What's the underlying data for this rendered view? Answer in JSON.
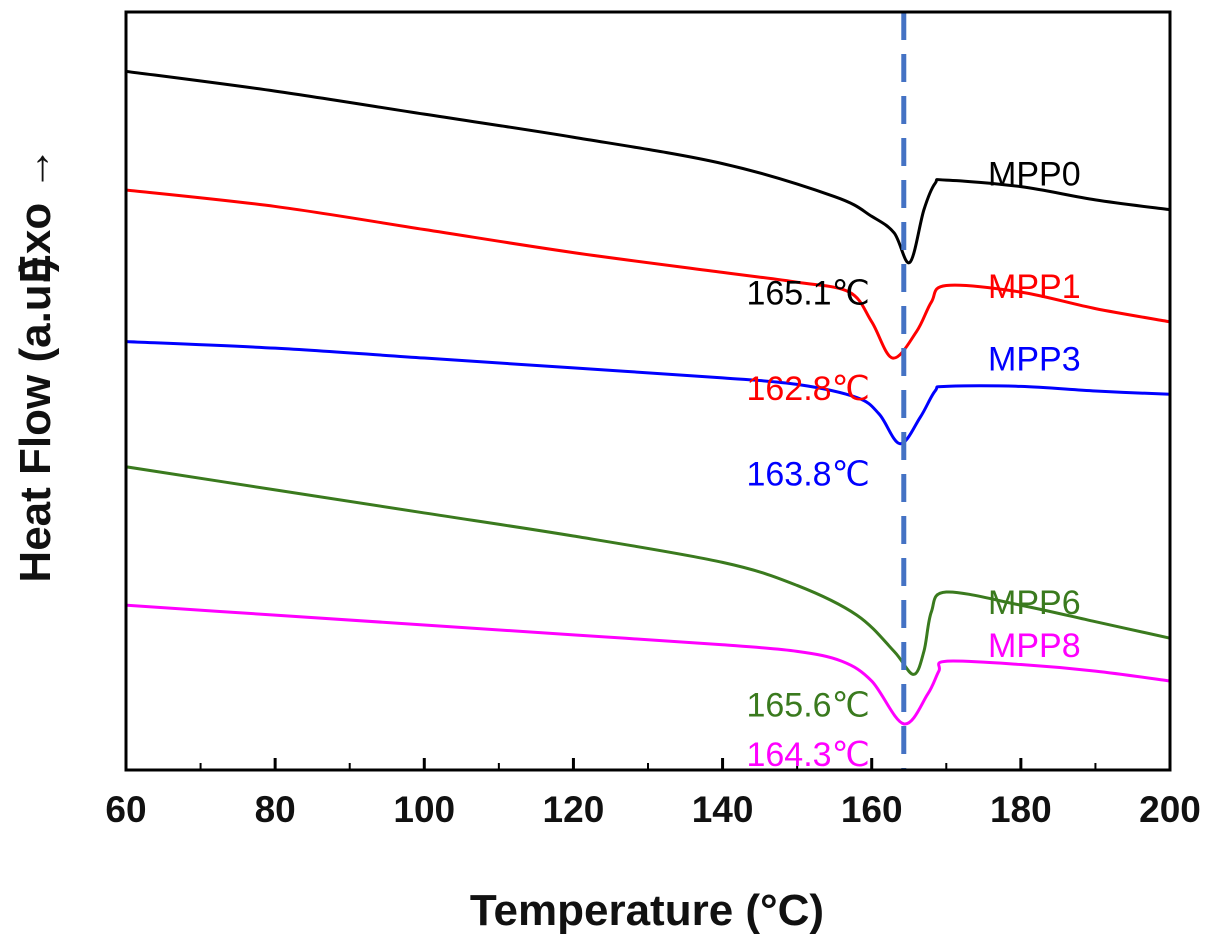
{
  "chart_data": {
    "type": "line",
    "xlabel": "Temperature (°C)",
    "ylabel": "Heat Flow (a.u.)",
    "ylabel_suffix": "Exo →",
    "xlim": [
      60,
      200
    ],
    "x_ticks": [
      "60",
      "80",
      "100",
      "120",
      "140",
      "160",
      "180",
      "200"
    ],
    "y_ticks_shown": false,
    "grid": false,
    "reference_line": {
      "x": 164.3,
      "style": "dashed",
      "color": "#4472c4"
    },
    "series": [
      {
        "name": "MPP0",
        "color": "#000000",
        "peak_label": "165.1℃",
        "points": [
          [
            60,
            10.0
          ],
          [
            80,
            9.7
          ],
          [
            100,
            9.35
          ],
          [
            120,
            9.0
          ],
          [
            140,
            8.6
          ],
          [
            155,
            8.1
          ],
          [
            160,
            7.8
          ],
          [
            163,
            7.55
          ],
          [
            165.1,
            7.1
          ],
          [
            167,
            7.9
          ],
          [
            168.5,
            8.3
          ],
          [
            170,
            8.35
          ],
          [
            180,
            8.25
          ],
          [
            190,
            8.05
          ],
          [
            200,
            7.9
          ]
        ]
      },
      {
        "name": "MPP1",
        "color": "#ff0000",
        "peak_label": "162.8℃",
        "points": [
          [
            60,
            8.2
          ],
          [
            80,
            7.95
          ],
          [
            100,
            7.6
          ],
          [
            120,
            7.25
          ],
          [
            140,
            6.95
          ],
          [
            150,
            6.8
          ],
          [
            157,
            6.65
          ],
          [
            160,
            6.2
          ],
          [
            162.8,
            5.65
          ],
          [
            166,
            6.05
          ],
          [
            168,
            6.5
          ],
          [
            170,
            6.75
          ],
          [
            180,
            6.65
          ],
          [
            190,
            6.4
          ],
          [
            200,
            6.2
          ]
        ]
      },
      {
        "name": "MPP3",
        "color": "#0000ff",
        "peak_label": "163.8℃",
        "points": [
          [
            60,
            5.9
          ],
          [
            80,
            5.8
          ],
          [
            100,
            5.65
          ],
          [
            120,
            5.5
          ],
          [
            140,
            5.35
          ],
          [
            150,
            5.25
          ],
          [
            158,
            5.05
          ],
          [
            161,
            4.8
          ],
          [
            163.8,
            4.35
          ],
          [
            166.5,
            4.75
          ],
          [
            168.5,
            5.15
          ],
          [
            170,
            5.22
          ],
          [
            180,
            5.22
          ],
          [
            190,
            5.15
          ],
          [
            200,
            5.1
          ]
        ]
      },
      {
        "name": "MPP6",
        "color": "#3a7a1e",
        "peak_label": "165.6℃",
        "points": [
          [
            60,
            4.0
          ],
          [
            80,
            3.65
          ],
          [
            100,
            3.3
          ],
          [
            120,
            2.95
          ],
          [
            140,
            2.55
          ],
          [
            150,
            2.2
          ],
          [
            158,
            1.75
          ],
          [
            163,
            1.2
          ],
          [
            165.6,
            0.85
          ],
          [
            167,
            1.2
          ],
          [
            168,
            1.8
          ],
          [
            170,
            2.1
          ],
          [
            180,
            1.9
          ],
          [
            190,
            1.65
          ],
          [
            200,
            1.4
          ]
        ]
      },
      {
        "name": "MPP8",
        "color": "#ff00ff",
        "peak_label": "164.3℃",
        "points": [
          [
            60,
            1.9
          ],
          [
            80,
            1.75
          ],
          [
            100,
            1.6
          ],
          [
            120,
            1.45
          ],
          [
            140,
            1.3
          ],
          [
            150,
            1.2
          ],
          [
            156,
            1.05
          ],
          [
            160,
            0.75
          ],
          [
            164.3,
            0.1
          ],
          [
            167.5,
            0.55
          ],
          [
            169,
            0.9
          ],
          [
            170,
            1.05
          ],
          [
            180,
            1.0
          ],
          [
            190,
            0.9
          ],
          [
            200,
            0.75
          ]
        ]
      }
    ]
  }
}
